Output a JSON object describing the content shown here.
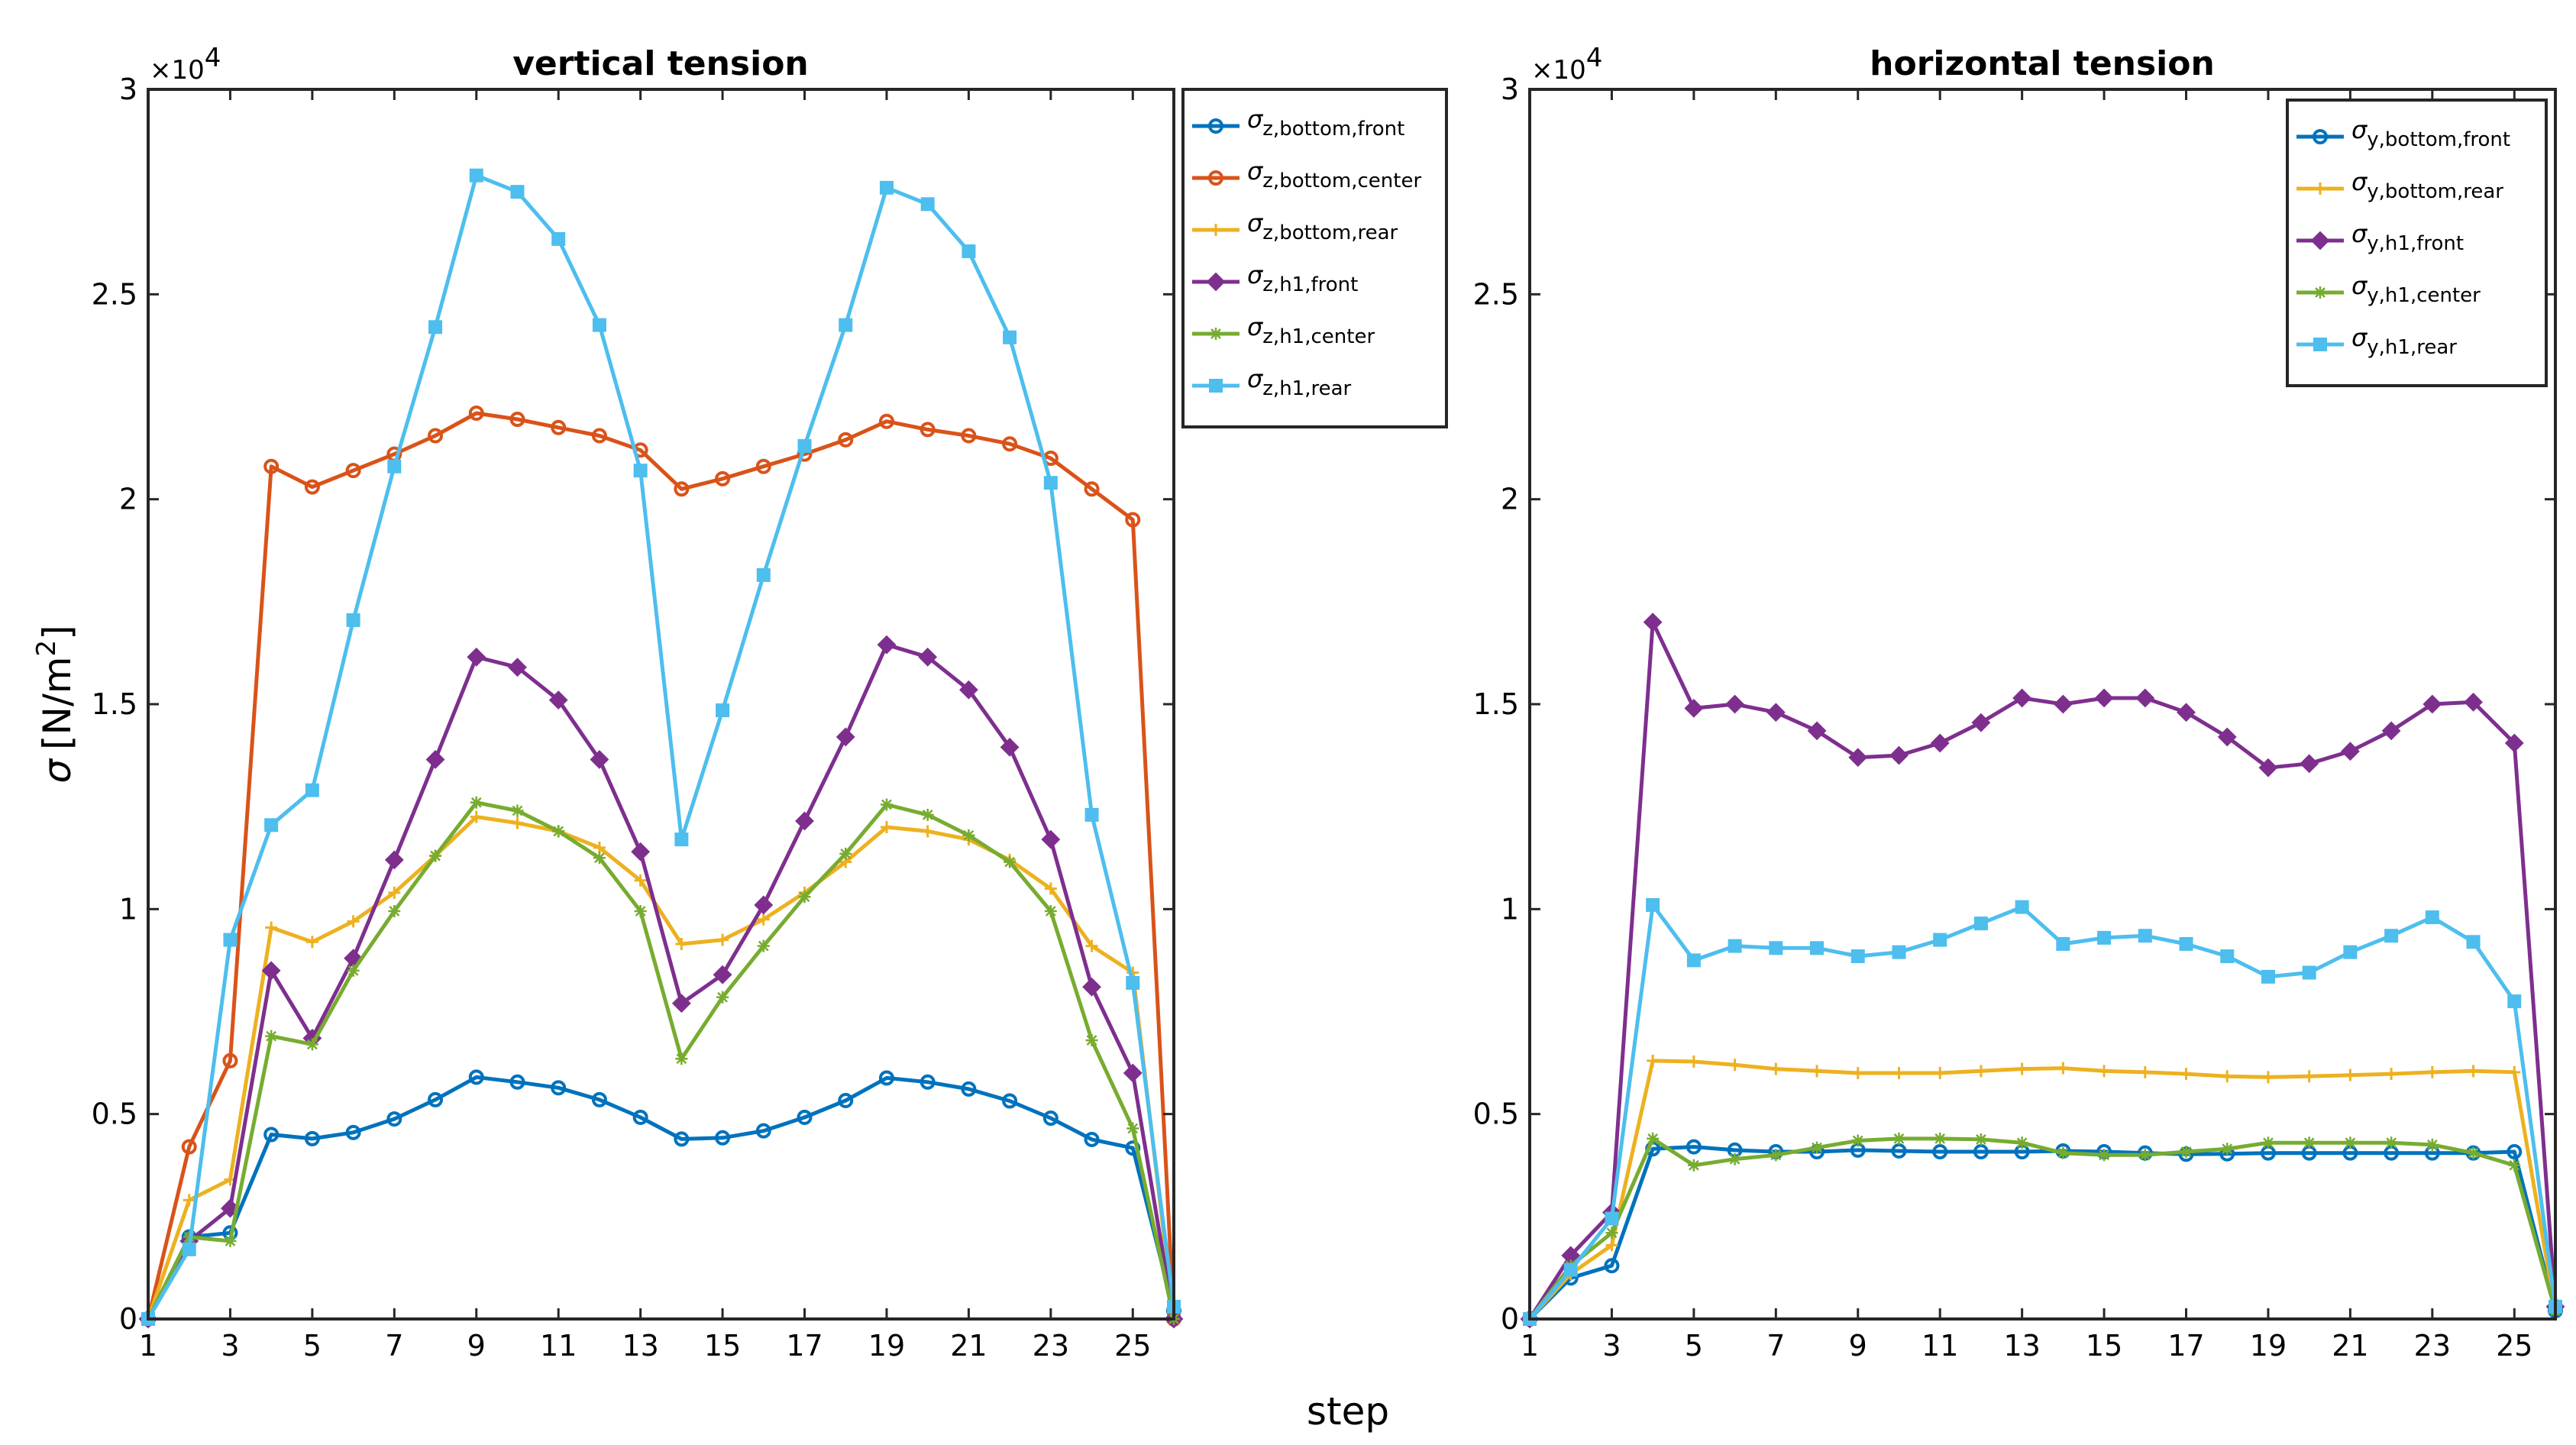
{
  "figure": {
    "shared_xlabel": "step",
    "ylabel_symbol": "σ",
    "ylabel_units": "[N/m",
    "ylabel_power": "2",
    "ylabel_close": "]"
  },
  "chart_data": [
    {
      "type": "line",
      "title": "vertical tension",
      "xlabel": "step",
      "ylabel": "σ [N/m²]",
      "xlim": [
        1,
        26
      ],
      "ylim": [
        0,
        30000
      ],
      "exponent_label": "×10",
      "exponent_power": "4",
      "xticks": [
        1,
        3,
        5,
        7,
        9,
        11,
        13,
        15,
        17,
        19,
        21,
        23,
        25
      ],
      "yticks": [
        0,
        5000,
        10000,
        15000,
        20000,
        25000,
        30000
      ],
      "ytick_labels": [
        "0",
        "0.5",
        "1",
        "1.5",
        "2",
        "2.5",
        "3"
      ],
      "legend_position": "outside-right-top",
      "x": [
        1,
        2,
        3,
        4,
        5,
        6,
        7,
        8,
        9,
        10,
        11,
        12,
        13,
        14,
        15,
        16,
        17,
        18,
        19,
        20,
        21,
        22,
        23,
        24,
        25,
        26
      ],
      "series": [
        {
          "name": "σ z,bottom,front",
          "sym": "σ",
          "sub": "z,bottom,front",
          "color": "#0072BD",
          "marker": "circle",
          "values": [
            0,
            2000,
            2100,
            4500,
            4400,
            4550,
            4880,
            5350,
            5900,
            5780,
            5640,
            5350,
            4920,
            4390,
            4420,
            4590,
            4920,
            5330,
            5880,
            5780,
            5610,
            5320,
            4900,
            4380,
            4170,
            200
          ]
        },
        {
          "name": "σ z,bottom,center",
          "sym": "σ",
          "sub": "z,bottom,center",
          "color": "#D95319",
          "marker": "circle",
          "values": [
            0,
            4200,
            6300,
            20800,
            20300,
            20700,
            21100,
            21550,
            22100,
            21950,
            21750,
            21550,
            21200,
            20250,
            20500,
            20800,
            21100,
            21450,
            21900,
            21700,
            21550,
            21350,
            21000,
            20250,
            19500,
            0
          ]
        },
        {
          "name": "σ z,bottom,rear",
          "sym": "σ",
          "sub": "z,bottom,rear",
          "color": "#EDB120",
          "marker": "plus",
          "values": [
            0,
            2900,
            3400,
            9550,
            9200,
            9700,
            10400,
            11300,
            12250,
            12100,
            11900,
            11500,
            10700,
            9150,
            9250,
            9750,
            10400,
            11150,
            12000,
            11900,
            11700,
            11200,
            10500,
            9100,
            8450,
            0
          ]
        },
        {
          "name": "σ z,h1,front",
          "sym": "σ",
          "sub": "z,h1,front",
          "color": "#7E2F8E",
          "marker": "diamond",
          "values": [
            0,
            1900,
            2700,
            8500,
            6850,
            8800,
            11200,
            13650,
            16150,
            15900,
            15100,
            13650,
            11400,
            7700,
            8400,
            10100,
            12150,
            14200,
            16450,
            16150,
            15350,
            13950,
            11700,
            8100,
            6000,
            0
          ]
        },
        {
          "name": "σ z,h1,center",
          "sym": "σ",
          "sub": "z,h1,center",
          "color": "#77AC30",
          "marker": "star",
          "values": [
            0,
            2000,
            1900,
            6900,
            6700,
            8500,
            9950,
            11300,
            12600,
            12400,
            11900,
            11250,
            9950,
            6350,
            7850,
            9100,
            10300,
            11350,
            12550,
            12300,
            11800,
            11150,
            9950,
            6800,
            4650,
            0
          ]
        },
        {
          "name": "σ z,h1,rear",
          "sym": "σ",
          "sub": "z,h1,rear",
          "color": "#4DBEEE",
          "marker": "square",
          "values": [
            0,
            1700,
            9250,
            12050,
            12900,
            17050,
            20800,
            24200,
            27900,
            27500,
            26350,
            24250,
            20700,
            11700,
            14850,
            18150,
            21300,
            24250,
            27600,
            27200,
            26050,
            23950,
            20400,
            12300,
            8200,
            300
          ]
        }
      ]
    },
    {
      "type": "line",
      "title": "horizontal tension",
      "xlabel": "step",
      "ylabel": "",
      "xlim": [
        1,
        26
      ],
      "ylim": [
        0,
        30000
      ],
      "exponent_label": "×10",
      "exponent_power": "4",
      "xticks": [
        1,
        3,
        5,
        7,
        9,
        11,
        13,
        15,
        17,
        19,
        21,
        23,
        25
      ],
      "yticks": [
        0,
        5000,
        10000,
        15000,
        20000,
        25000,
        30000
      ],
      "ytick_labels": [
        "0",
        "0.5",
        "1",
        "1.5",
        "2",
        "2.5",
        "3"
      ],
      "legend_position": "top-right",
      "x": [
        1,
        2,
        3,
        4,
        5,
        6,
        7,
        8,
        9,
        10,
        11,
        12,
        13,
        14,
        15,
        16,
        17,
        18,
        19,
        20,
        21,
        22,
        23,
        24,
        25,
        26
      ],
      "series": [
        {
          "name": "σ y,bottom,front",
          "sym": "σ",
          "sub": "y,bottom,front",
          "color": "#0072BD",
          "marker": "circle",
          "values": [
            0,
            1000,
            1300,
            4150,
            4200,
            4120,
            4080,
            4080,
            4120,
            4100,
            4080,
            4080,
            4080,
            4100,
            4080,
            4050,
            4020,
            4030,
            4050,
            4050,
            4050,
            4050,
            4050,
            4050,
            4080,
            200
          ]
        },
        {
          "name": "σ y,bottom,rear",
          "sym": "σ",
          "sub": "y,bottom,rear",
          "color": "#EDB120",
          "marker": "plus",
          "values": [
            0,
            1100,
            1800,
            6300,
            6280,
            6200,
            6100,
            6050,
            6000,
            6000,
            6000,
            6050,
            6100,
            6120,
            6050,
            6020,
            5980,
            5920,
            5900,
            5920,
            5950,
            5980,
            6020,
            6050,
            6020,
            200
          ]
        },
        {
          "name": "σ y,h1,front",
          "sym": "σ",
          "sub": "y,h1,front",
          "color": "#7E2F8E",
          "marker": "diamond",
          "values": [
            0,
            1550,
            2600,
            17000,
            14900,
            15000,
            14800,
            14350,
            13700,
            13750,
            14050,
            14550,
            15150,
            15000,
            15150,
            15150,
            14800,
            14200,
            13450,
            13550,
            13850,
            14350,
            15000,
            15050,
            14050,
            300
          ]
        },
        {
          "name": "σ y,h1,center",
          "sym": "σ",
          "sub": "y,h1,center",
          "color": "#77AC30",
          "marker": "star",
          "values": [
            0,
            1300,
            2100,
            4400,
            3750,
            3900,
            4000,
            4180,
            4350,
            4400,
            4400,
            4380,
            4300,
            4050,
            4000,
            4000,
            4080,
            4150,
            4300,
            4300,
            4300,
            4300,
            4250,
            4050,
            3750,
            200
          ]
        },
        {
          "name": "σ y,h1,rear",
          "sym": "σ",
          "sub": "y,h1,rear",
          "color": "#4DBEEE",
          "marker": "square",
          "values": [
            0,
            1200,
            2450,
            10100,
            8750,
            9100,
            9050,
            9050,
            8850,
            8950,
            9250,
            9650,
            10050,
            9150,
            9300,
            9350,
            9150,
            8850,
            8350,
            8450,
            8950,
            9350,
            9800,
            9200,
            7750,
            300
          ]
        }
      ]
    }
  ]
}
